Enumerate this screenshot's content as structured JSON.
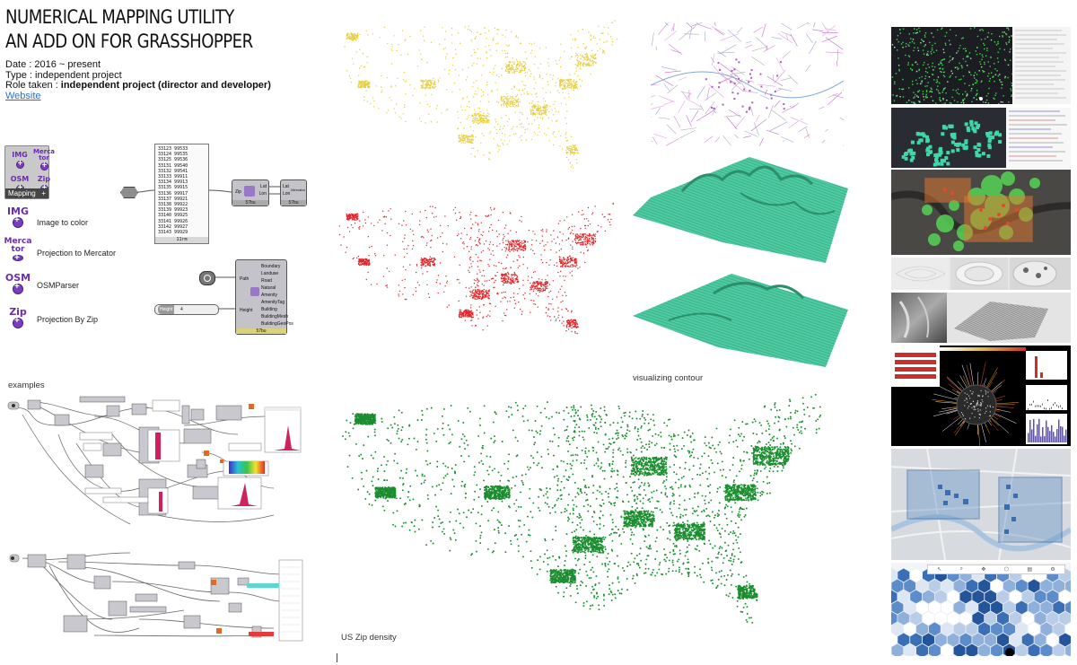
{
  "header": {
    "title_line1": "NUMERICAL MAPPING UTILITY",
    "title_line2": "AN ADD ON FOR  GRASSHOPPER",
    "date_label": "Date : 2016 ~ present",
    "type_label": "Type : independent project",
    "role_prefix": "Role taken : ",
    "role_value": "independent project (director and developer)",
    "website_link": "Website"
  },
  "toolbox": {
    "tab_label": "Mapping",
    "components": [
      {
        "abbr": "IMG",
        "label": "Image to color"
      },
      {
        "abbr": "Merca tor",
        "label": "Projection to Mercator"
      },
      {
        "abbr": "OSM",
        "label": "OSMParser"
      },
      {
        "abbr": "Zip",
        "label": "Projection By Zip"
      }
    ]
  },
  "node_panel": {
    "numbers": [
      "33123 99533",
      "33124 99535",
      "33125 99536",
      "33131 99540",
      "33132 99541",
      "33133 99911",
      "33134 99913",
      "33135 99915",
      "33136 99917",
      "33137 99921",
      "33138 99922",
      "33139 99923",
      "33140 99925",
      "33141 99926",
      "33142 99927",
      "33143 99929"
    ],
    "footer": "11rm",
    "zip_node": {
      "name": "Zip",
      "in": [
        "Lat",
        "Lon"
      ],
      "footer": "57bu"
    },
    "merc_node": {
      "in": [
        "Lat",
        "Lon"
      ],
      "out": "Mercator",
      "footer": "57bu"
    }
  },
  "osm_node": {
    "input_left": "Path",
    "input_left2": "Height",
    "slider_label": "Height",
    "slider_value": "4",
    "outputs": [
      "Boundary",
      "Landuse",
      "Road",
      "Natural",
      "Amenity",
      "AmenityTag",
      "Building",
      "BuildingMesh",
      "BuildingGeoPos"
    ],
    "footer": "57bu"
  },
  "captions": {
    "examples": "examples",
    "contour": "visualizing contour",
    "zip_density": "US Zip density"
  },
  "colors": {
    "yellow_map": "#e8cf3f",
    "red_map": "#e0262a",
    "green_map": "#1b8e2f",
    "terrain": "#46c99e",
    "icon_purple": "#7b3ec2"
  },
  "thumbnails": [
    "green-point-cloud-dark",
    "teal-blobs-dark",
    "heatmap-overlay",
    "contour-gray",
    "terrain-grayscale",
    "radial-visualization",
    "city-map-blue-squares",
    "hex-grid-blue"
  ],
  "thumb_toolbar_icons": [
    "pointer-icon",
    "zoom-icon",
    "pan-icon",
    "hex-icon",
    "layer-icon",
    "settings-icon"
  ]
}
